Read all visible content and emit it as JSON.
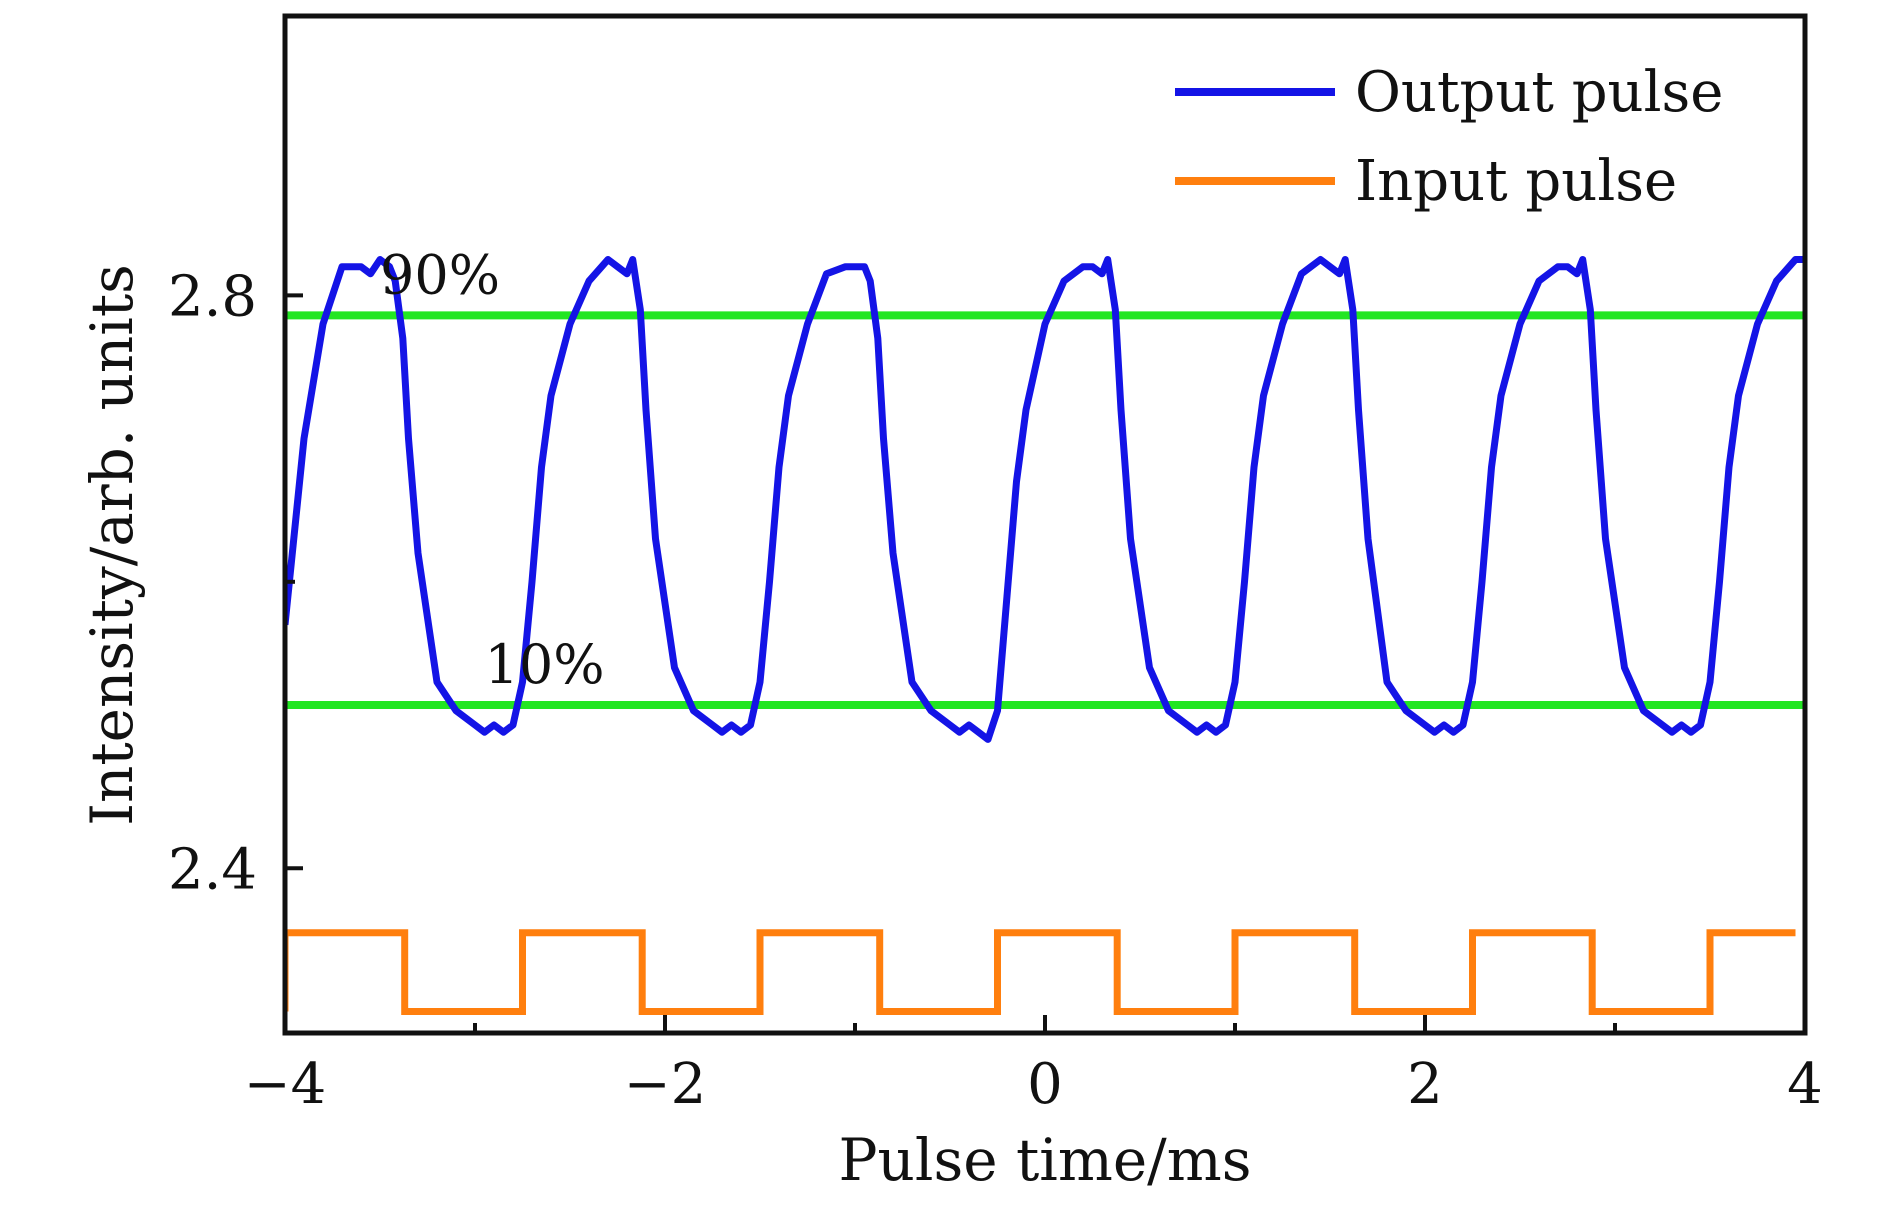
{
  "chart_data": {
    "type": "line",
    "title": "",
    "xlabel": "Pulse time/ms",
    "ylabel": "Intensity/arb. units",
    "xlim": [
      -4,
      4
    ],
    "ylim": [
      2.285,
      2.995
    ],
    "x_ticks": [
      {
        "value": -4,
        "label": "−4"
      },
      {
        "value": -2,
        "label": "−2"
      },
      {
        "value": 0,
        "label": "0"
      },
      {
        "value": 2,
        "label": "2"
      },
      {
        "value": 4,
        "label": "4"
      }
    ],
    "x_minor_ticks": [
      -3,
      -1,
      1,
      3
    ],
    "y_ticks": [
      {
        "value": 2.4,
        "label": "2.4"
      },
      {
        "value": 2.8,
        "label": "2.8"
      }
    ],
    "y_minor_ticks": [
      2.6
    ],
    "grid": false,
    "legend_position": "top-right",
    "output_period_ms": 1.25,
    "series": [
      {
        "name": "Output pulse",
        "color": "#1414e6",
        "x": [
          -4.0,
          -3.9,
          -3.8,
          -3.7,
          -3.6,
          -3.55,
          -3.5,
          -3.45,
          -3.42,
          -3.38,
          -3.35,
          -3.3,
          -3.2,
          -3.1,
          -3.0,
          -2.95,
          -2.9,
          -2.85,
          -2.8,
          -2.75,
          -2.7,
          -2.65,
          -2.6,
          -2.5,
          -2.4,
          -2.3,
          -2.25,
          -2.2,
          -2.17,
          -2.13,
          -2.1,
          -2.05,
          -1.95,
          -1.85,
          -1.75,
          -1.7,
          -1.65,
          -1.6,
          -1.55,
          -1.5,
          -1.45,
          -1.4,
          -1.35,
          -1.25,
          -1.15,
          -1.05,
          -1.0,
          -0.95,
          -0.92,
          -0.88,
          -0.85,
          -0.8,
          -0.7,
          -0.6,
          -0.5,
          -0.45,
          -0.4,
          -0.35,
          -0.3,
          -0.25,
          -0.2,
          -0.15,
          -0.1,
          0.0,
          0.1,
          0.2,
          0.25,
          0.3,
          0.33,
          0.37,
          0.4,
          0.45,
          0.55,
          0.65,
          0.75,
          0.8,
          0.85,
          0.9,
          0.95,
          1.0,
          1.05,
          1.1,
          1.15,
          1.25,
          1.35,
          1.45,
          1.5,
          1.55,
          1.58,
          1.62,
          1.65,
          1.7,
          1.8,
          1.9,
          2.0,
          2.05,
          2.1,
          2.15,
          2.2,
          2.25,
          2.3,
          2.35,
          2.4,
          2.5,
          2.6,
          2.7,
          2.75,
          2.8,
          2.83,
          2.87,
          2.9,
          2.95,
          3.05,
          3.15,
          3.25,
          3.3,
          3.35,
          3.4,
          3.45,
          3.5,
          3.55,
          3.6,
          3.65,
          3.75,
          3.85,
          3.95,
          4.0
        ],
        "y": [
          2.57,
          2.7,
          2.78,
          2.82,
          2.82,
          2.815,
          2.825,
          2.82,
          2.81,
          2.77,
          2.7,
          2.62,
          2.53,
          2.51,
          2.5,
          2.495,
          2.5,
          2.495,
          2.5,
          2.53,
          2.6,
          2.68,
          2.73,
          2.78,
          2.81,
          2.825,
          2.82,
          2.815,
          2.825,
          2.79,
          2.72,
          2.63,
          2.54,
          2.51,
          2.5,
          2.495,
          2.5,
          2.495,
          2.5,
          2.53,
          2.6,
          2.68,
          2.73,
          2.78,
          2.815,
          2.82,
          2.82,
          2.82,
          2.81,
          2.77,
          2.7,
          2.62,
          2.53,
          2.51,
          2.5,
          2.495,
          2.5,
          2.495,
          2.49,
          2.51,
          2.59,
          2.67,
          2.72,
          2.78,
          2.81,
          2.82,
          2.82,
          2.815,
          2.825,
          2.79,
          2.72,
          2.63,
          2.54,
          2.51,
          2.5,
          2.495,
          2.5,
          2.495,
          2.5,
          2.53,
          2.6,
          2.68,
          2.73,
          2.78,
          2.815,
          2.825,
          2.82,
          2.815,
          2.825,
          2.79,
          2.72,
          2.63,
          2.53,
          2.51,
          2.5,
          2.495,
          2.5,
          2.495,
          2.5,
          2.53,
          2.6,
          2.68,
          2.73,
          2.78,
          2.81,
          2.82,
          2.82,
          2.815,
          2.825,
          2.79,
          2.72,
          2.63,
          2.54,
          2.51,
          2.5,
          2.495,
          2.5,
          2.495,
          2.5,
          2.53,
          2.6,
          2.68,
          2.73,
          2.78,
          2.81,
          2.825,
          2.825
        ]
      },
      {
        "name": "Input pulse",
        "color": "#ff7f0e",
        "x": [
          -4.0,
          -4.0,
          -3.37,
          -3.37,
          -2.75,
          -2.75,
          -2.12,
          -2.12,
          -1.5,
          -1.5,
          -0.87,
          -0.87,
          -0.25,
          -0.25,
          0.38,
          0.38,
          1.0,
          1.0,
          1.63,
          1.63,
          2.25,
          2.25,
          2.88,
          2.88,
          3.5,
          3.5,
          3.95
        ],
        "y": [
          2.3,
          2.355,
          2.355,
          2.3,
          2.3,
          2.355,
          2.355,
          2.3,
          2.3,
          2.355,
          2.355,
          2.3,
          2.3,
          2.355,
          2.355,
          2.3,
          2.3,
          2.355,
          2.355,
          2.3,
          2.3,
          2.355,
          2.355,
          2.3,
          2.3,
          2.355,
          2.355
        ]
      }
    ],
    "reference_lines": [
      {
        "y": 2.786,
        "label": "90%",
        "color": "#22e622",
        "label_x": -3.5
      },
      {
        "y": 2.514,
        "label": "10%",
        "color": "#22e622",
        "label_x": -2.95
      }
    ]
  }
}
